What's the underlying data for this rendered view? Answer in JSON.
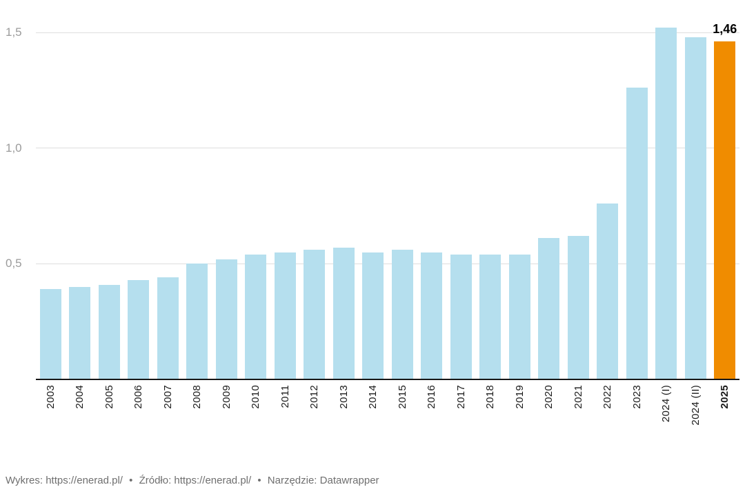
{
  "chart_data": {
    "type": "bar",
    "categories": [
      "2003",
      "2004",
      "2005",
      "2006",
      "2007",
      "2008",
      "2009",
      "2010",
      "2011",
      "2012",
      "2013",
      "2014",
      "2015",
      "2016",
      "2017",
      "2018",
      "2019",
      "2020",
      "2021",
      "2022",
      "2023",
      "2024 (I)",
      "2024 (II)",
      "2025"
    ],
    "values": [
      0.39,
      0.4,
      0.41,
      0.43,
      0.44,
      0.5,
      0.52,
      0.54,
      0.55,
      0.56,
      0.57,
      0.55,
      0.56,
      0.55,
      0.54,
      0.54,
      0.54,
      0.61,
      0.62,
      0.76,
      1.26,
      1.52,
      1.48,
      1.46
    ],
    "highlight_index": 23,
    "highlight_label": "1,46",
    "bar_color": "#b5dfee",
    "highlight_color": "#f08c00",
    "ylim": [
      0,
      1.5
    ],
    "yticks": [
      {
        "value": 0.5,
        "label": "0,5"
      },
      {
        "value": 1.0,
        "label": "1,0"
      },
      {
        "value": 1.5,
        "label": "1,5"
      }
    ],
    "grid": true,
    "legend_position": "none",
    "title": "",
    "xlabel": "",
    "ylabel": ""
  },
  "footer": {
    "chart_label": "Wykres:",
    "chart_link": "https://enerad.pl/",
    "sep1": "•",
    "source_label": "Źródło:",
    "source_link": "https://enerad.pl/",
    "sep2": "•",
    "tool_label": "Narzędzie:",
    "tool_link": "Datawrapper"
  }
}
